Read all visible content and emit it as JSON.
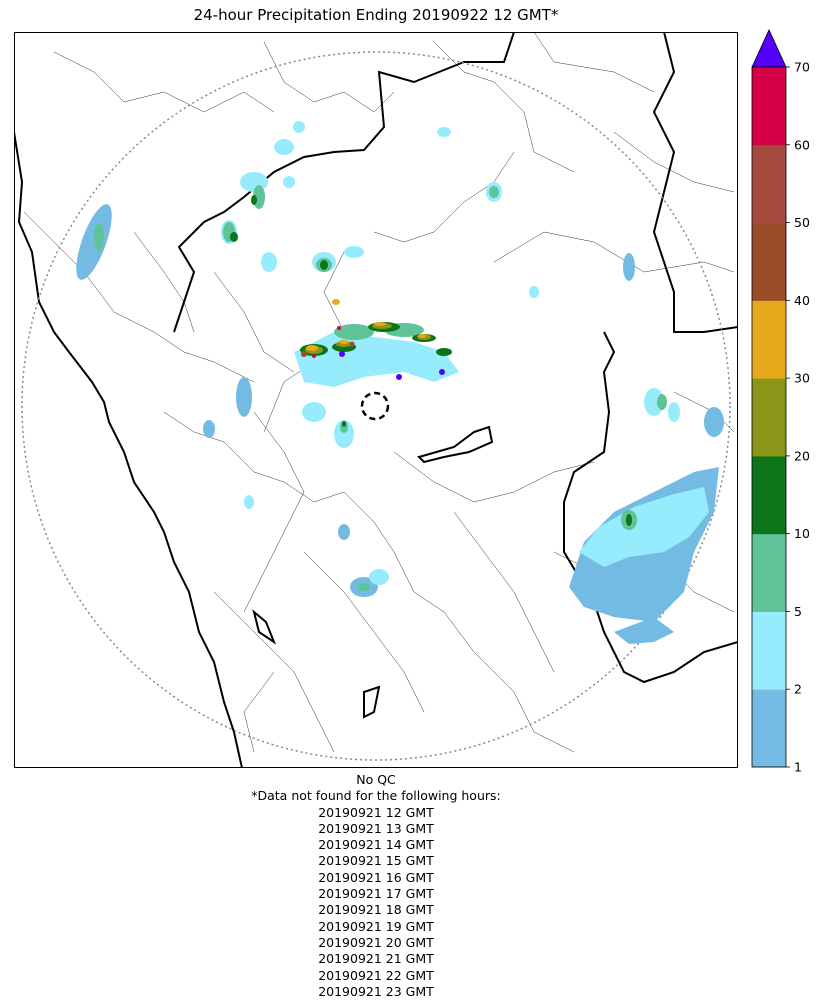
{
  "title": "24-hour Precipitation Ending 20190922 12 GMT*",
  "map": {
    "legend_levels": [
      "1",
      "2",
      "5",
      "10",
      "20",
      "30",
      "40",
      "50",
      "60",
      "70"
    ],
    "legend_colors": [
      "#74bbe3",
      "#96ecfc",
      "#5ec397",
      "#0e7419",
      "#8b9618",
      "#e6a91b",
      "#9a4d28",
      "#a64a40",
      "#d50046"
    ],
    "overflow_color": "#5400ff",
    "legend_extend": "max",
    "range_ring": "dotted",
    "radar_site": "dashed circle"
  },
  "footer": {
    "qc_status": "No QC",
    "missing_note": "*Data not found for the following hours:",
    "missing_hours": [
      "20190921 12 GMT",
      "20190921 13 GMT",
      "20190921 14 GMT",
      "20190921 15 GMT",
      "20190921 16 GMT",
      "20190921 17 GMT",
      "20190921 18 GMT",
      "20190921 19 GMT",
      "20190921 20 GMT",
      "20190921 21 GMT",
      "20190921 22 GMT",
      "20190921 23 GMT"
    ]
  }
}
